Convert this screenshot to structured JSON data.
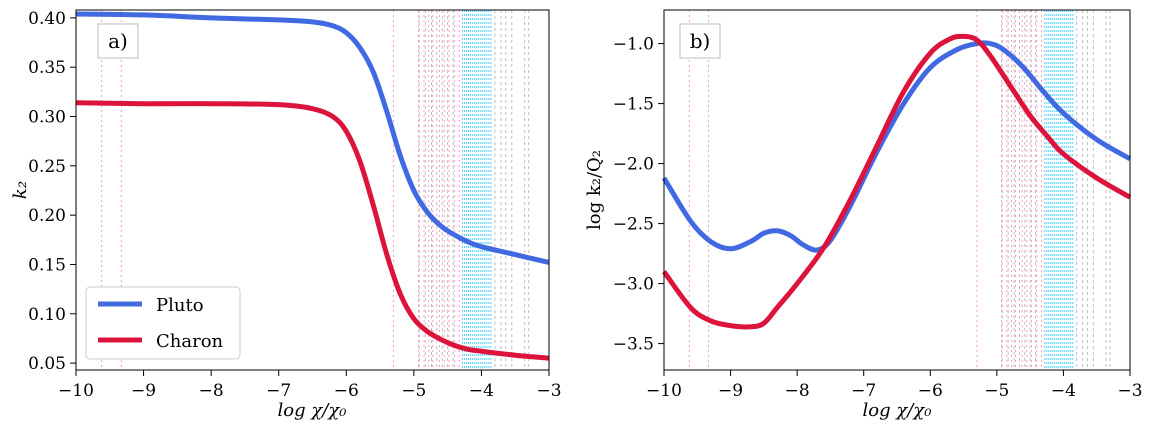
{
  "colors": {
    "pluto": "#4169E1",
    "charon": "#DC143C",
    "pink_vlines": "#FF69B4",
    "cyan_vlines": "#00BFFF",
    "gray_vlines": "#A0A0A0"
  },
  "chart_data": [
    {
      "type": "line",
      "panel_label": "a)",
      "xlabel": "log χ/χ₀",
      "ylabel": "k₂",
      "xlim": [
        -10,
        -3
      ],
      "ylim": [
        0.043,
        0.408
      ],
      "xticks": [
        -10,
        -9,
        -8,
        -7,
        -6,
        -5,
        -4,
        -3
      ],
      "xtick_labels": [
        "−10",
        "−9",
        "−8",
        "−7",
        "−6",
        "−5",
        "−4",
        "−3"
      ],
      "yticks": [
        0.05,
        0.1,
        0.15,
        0.2,
        0.25,
        0.3,
        0.35,
        0.4
      ],
      "ytick_labels": [
        "0.05",
        "0.10",
        "0.15",
        "0.20",
        "0.25",
        "0.30",
        "0.35",
        "0.40"
      ],
      "legend": {
        "placement": "bottom-left",
        "entries": [
          "Pluto",
          "Charon"
        ]
      },
      "series": [
        {
          "name": "Pluto",
          "x": [
            -10,
            -9,
            -8,
            -7,
            -6.5,
            -6.2,
            -6.0,
            -5.8,
            -5.6,
            -5.4,
            -5.2,
            -5.0,
            -4.8,
            -4.6,
            -4.4,
            -4.2,
            -4.0,
            -3.5,
            -3.0
          ],
          "y": [
            0.404,
            0.403,
            0.4,
            0.398,
            0.396,
            0.392,
            0.385,
            0.37,
            0.345,
            0.305,
            0.26,
            0.225,
            0.203,
            0.189,
            0.18,
            0.173,
            0.168,
            0.16,
            0.152
          ]
        },
        {
          "name": "Charon",
          "x": [
            -10,
            -9,
            -8,
            -7,
            -6.5,
            -6.2,
            -6.0,
            -5.8,
            -5.6,
            -5.4,
            -5.2,
            -5.0,
            -4.8,
            -4.6,
            -4.4,
            -4.2,
            -4.0,
            -3.5,
            -3.0
          ],
          "y": [
            0.314,
            0.313,
            0.313,
            0.312,
            0.308,
            0.3,
            0.285,
            0.255,
            0.21,
            0.16,
            0.12,
            0.095,
            0.082,
            0.074,
            0.068,
            0.064,
            0.062,
            0.058,
            0.055
          ]
        }
      ]
    },
    {
      "type": "line",
      "panel_label": "b)",
      "xlabel": "log χ/χ₀",
      "ylabel": "log k₂/Q₂",
      "xlim": [
        -10,
        -3
      ],
      "ylim": [
        -3.72,
        -0.72
      ],
      "xticks": [
        -10,
        -9,
        -8,
        -7,
        -6,
        -5,
        -4,
        -3
      ],
      "xtick_labels": [
        "−10",
        "−9",
        "−8",
        "−7",
        "−6",
        "−5",
        "−4",
        "−3"
      ],
      "yticks": [
        -3.5,
        -3.0,
        -2.5,
        -2.0,
        -1.5,
        -1.0
      ],
      "ytick_labels": [
        "−3.5",
        "−3.0",
        "−2.5",
        "−2.0",
        "−1.5",
        "−1.0"
      ],
      "series": [
        {
          "name": "Pluto",
          "x": [
            -10,
            -9.6,
            -9.3,
            -9.0,
            -8.7,
            -8.5,
            -8.3,
            -8.1,
            -7.9,
            -7.7,
            -7.5,
            -7.2,
            -6.8,
            -6.4,
            -6.0,
            -5.6,
            -5.3,
            -5.1,
            -4.9,
            -4.6,
            -4.3,
            -4.0,
            -3.5,
            -3.0
          ],
          "y": [
            -2.12,
            -2.48,
            -2.65,
            -2.71,
            -2.65,
            -2.58,
            -2.56,
            -2.6,
            -2.68,
            -2.72,
            -2.64,
            -2.35,
            -1.9,
            -1.5,
            -1.2,
            -1.05,
            -1.0,
            -1.0,
            -1.05,
            -1.2,
            -1.4,
            -1.58,
            -1.8,
            -1.96
          ]
        },
        {
          "name": "Charon",
          "x": [
            -10,
            -9.6,
            -9.3,
            -9.0,
            -8.7,
            -8.5,
            -8.3,
            -8.0,
            -7.6,
            -7.2,
            -6.8,
            -6.4,
            -6.0,
            -5.7,
            -5.5,
            -5.3,
            -5.1,
            -4.8,
            -4.5,
            -4.2,
            -4.0,
            -3.5,
            -3.0
          ],
          "y": [
            -2.9,
            -3.2,
            -3.31,
            -3.35,
            -3.36,
            -3.33,
            -3.2,
            -3.0,
            -2.7,
            -2.3,
            -1.85,
            -1.4,
            -1.08,
            -0.96,
            -0.94,
            -0.97,
            -1.1,
            -1.35,
            -1.6,
            -1.8,
            -1.92,
            -2.12,
            -2.28
          ]
        }
      ]
    }
  ],
  "vlines": {
    "pink": [
      -9.62,
      -9.33,
      -5.3,
      -4.93,
      -4.85,
      -4.78,
      -4.72,
      -4.62,
      -4.55,
      -4.48,
      -4.4,
      -4.33
    ],
    "cyan": [
      -4.28,
      -4.25,
      -4.22,
      -4.19,
      -4.16,
      -4.13,
      -4.1,
      -4.07,
      -4.04,
      -4.01,
      -3.98,
      -3.95,
      -3.92,
      -3.89,
      -3.86
    ],
    "gray": [
      -4.92,
      -4.83,
      -4.74,
      -4.66,
      -4.58,
      -4.5,
      -4.42,
      -3.8,
      -3.71,
      -3.64,
      -3.55,
      -3.36,
      -3.3
    ]
  }
}
